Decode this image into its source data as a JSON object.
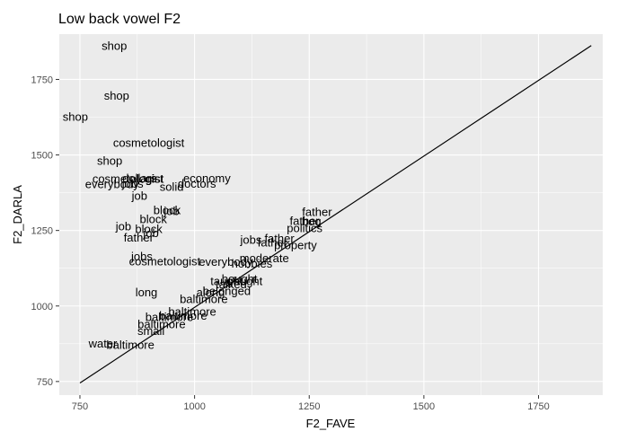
{
  "chart_data": {
    "type": "scatter",
    "title": "Low back vowel F2",
    "xlabel": "F2_FAVE",
    "ylabel": "F2_DARLA",
    "xlim": [
      705,
      1890
    ],
    "ylim": [
      705,
      1900
    ],
    "x_ticks": [
      750,
      1000,
      1250,
      1500,
      1750
    ],
    "y_ticks": [
      750,
      1000,
      1250,
      1500,
      1750
    ],
    "grid": true,
    "background": "#ebebeb",
    "gridline_color": "#ffffff",
    "reference_line": {
      "x": [
        750,
        1865
      ],
      "y": [
        745,
        1862
      ]
    },
    "points": [
      {
        "label": "shop",
        "x": 825,
        "y": 1862
      },
      {
        "label": "shop",
        "x": 830,
        "y": 1697
      },
      {
        "label": "shop",
        "x": 740,
        "y": 1627
      },
      {
        "label": "cosmetologist",
        "x": 900,
        "y": 1540
      },
      {
        "label": "shop",
        "x": 815,
        "y": 1481
      },
      {
        "label": "cosmetologist",
        "x": 855,
        "y": 1421
      },
      {
        "label": "dollars",
        "x": 880,
        "y": 1423
      },
      {
        "label": "gist",
        "x": 912,
        "y": 1421
      },
      {
        "label": "economy",
        "x": 1027,
        "y": 1423
      },
      {
        "label": "everybody",
        "x": 820,
        "y": 1403
      },
      {
        "label": "jobs",
        "x": 865,
        "y": 1405
      },
      {
        "label": "doctors",
        "x": 1005,
        "y": 1405
      },
      {
        "label": "solid",
        "x": 950,
        "y": 1395
      },
      {
        "label": "job",
        "x": 880,
        "y": 1365
      },
      {
        "label": "block",
        "x": 940,
        "y": 1318
      },
      {
        "label": "job",
        "x": 950,
        "y": 1314
      },
      {
        "label": "block",
        "x": 910,
        "y": 1288
      },
      {
        "label": "job",
        "x": 845,
        "y": 1264
      },
      {
        "label": "block",
        "x": 900,
        "y": 1255
      },
      {
        "label": "job",
        "x": 905,
        "y": 1241
      },
      {
        "label": "father",
        "x": 878,
        "y": 1227
      },
      {
        "label": "father",
        "x": 1267,
        "y": 1312
      },
      {
        "label": "father",
        "x": 1240,
        "y": 1282
      },
      {
        "label": "bog",
        "x": 1255,
        "y": 1280
      },
      {
        "label": "politics",
        "x": 1240,
        "y": 1258
      },
      {
        "label": "jobs",
        "x": 1123,
        "y": 1220
      },
      {
        "label": "father",
        "x": 1185,
        "y": 1224
      },
      {
        "label": "father",
        "x": 1170,
        "y": 1210
      },
      {
        "label": "property",
        "x": 1220,
        "y": 1202
      },
      {
        "label": "jobs",
        "x": 885,
        "y": 1165
      },
      {
        "label": "cosmetologist",
        "x": 935,
        "y": 1148
      },
      {
        "label": "everybody",
        "x": 1068,
        "y": 1146
      },
      {
        "label": "hobbies",
        "x": 1125,
        "y": 1140
      },
      {
        "label": "moderate",
        "x": 1152,
        "y": 1158
      },
      {
        "label": "bought",
        "x": 1098,
        "y": 1090
      },
      {
        "label": "taught",
        "x": 1070,
        "y": 1082
      },
      {
        "label": "talked",
        "x": 1080,
        "y": 1072
      },
      {
        "label": "caught",
        "x": 1110,
        "y": 1082
      },
      {
        "label": "belonged",
        "x": 1070,
        "y": 1050
      },
      {
        "label": "along",
        "x": 1035,
        "y": 1045
      },
      {
        "label": "long",
        "x": 895,
        "y": 1045
      },
      {
        "label": "baltimore",
        "x": 1020,
        "y": 1023
      },
      {
        "label": "baltimore",
        "x": 995,
        "y": 982
      },
      {
        "label": "baltimore",
        "x": 975,
        "y": 968
      },
      {
        "label": "baltimore",
        "x": 945,
        "y": 963
      },
      {
        "label": "baltimore",
        "x": 928,
        "y": 940
      },
      {
        "label": "small",
        "x": 905,
        "y": 917
      },
      {
        "label": "water",
        "x": 800,
        "y": 876
      },
      {
        "label": "baltimore",
        "x": 860,
        "y": 872
      }
    ]
  }
}
